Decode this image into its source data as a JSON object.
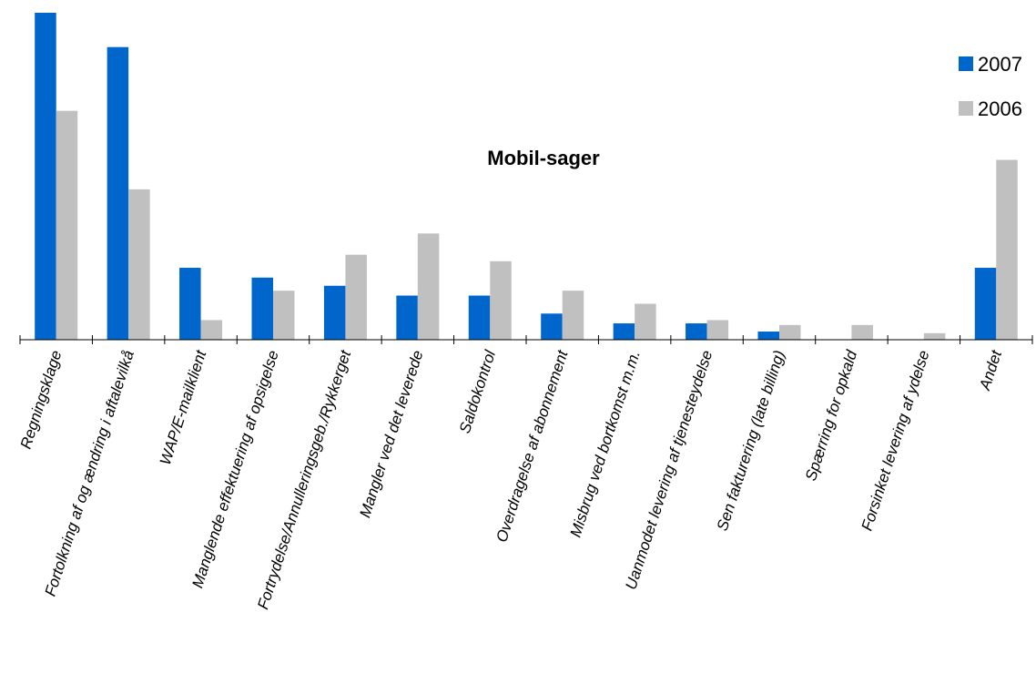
{
  "chart_data": {
    "type": "bar",
    "title": "Mobil-sager",
    "xlabel": "",
    "ylabel": "",
    "ylim": [
      0,
      100
    ],
    "grid": false,
    "legend_position": "top-right",
    "categories": [
      "Regningsklage",
      "Fortolkning af og ændring i aftalevilkå",
      "WAP/E-mailklient",
      "Manglende effektuering af opsigelse",
      "Fortrydelse/Annulleringsgeb./Rykkerget",
      "Mangler ved det leverede",
      "Saldokontrol",
      "Overdragelse af abonnement",
      "Misbrug ved bortkomst m.m.",
      "Uanmodet levering af tjenesteydelse",
      "Sen fakturering (late billing)",
      "Spærring for opkald",
      "Forsinket levering af ydelse",
      "Andet"
    ],
    "series": [
      {
        "name": "2007",
        "color": "#0066cc",
        "values": [
          100,
          89.5,
          22,
          19,
          16.5,
          13.5,
          13.5,
          8,
          5,
          5,
          2.5,
          0,
          0,
          22
        ]
      },
      {
        "name": "2006",
        "color": "#c0c0c0",
        "values": [
          70,
          46,
          6,
          15,
          26,
          32.5,
          24,
          15,
          11,
          6,
          4.5,
          4.5,
          2,
          55
        ]
      }
    ]
  }
}
